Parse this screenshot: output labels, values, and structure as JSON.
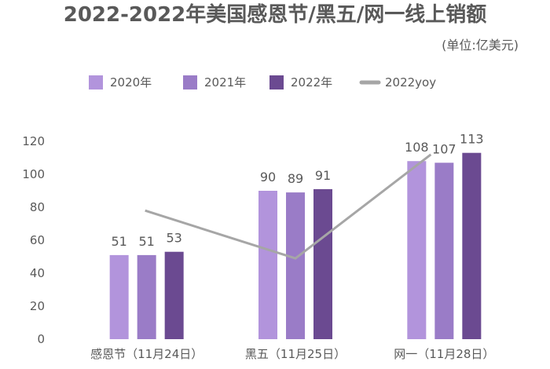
{
  "chart_data": {
    "type": "bar",
    "title": "2022-2022年美国感恩节/黑五/网一线上销额",
    "unit": "(单位:亿美元)",
    "categories": [
      "感恩节（11月24日）",
      "黑五（11月25日）",
      "网一（11月28日）"
    ],
    "series": [
      {
        "name": "2020年",
        "type": "bar",
        "color": "#b294dc",
        "values": [
          51,
          90,
          108
        ]
      },
      {
        "name": "2021年",
        "type": "bar",
        "color": "#9a7cc7",
        "values": [
          51,
          89,
          107
        ]
      },
      {
        "name": "2022年",
        "type": "bar",
        "color": "#6b4a91",
        "values": [
          53,
          91,
          113
        ]
      },
      {
        "name": "2022yoy",
        "type": "line",
        "color": "#a6a6a6",
        "values": [
          78,
          49,
          112
        ]
      }
    ],
    "yticks": [
      0,
      20,
      40,
      60,
      80,
      100,
      120
    ],
    "ylim": [
      0,
      120
    ],
    "grid": false,
    "legend": "top"
  }
}
